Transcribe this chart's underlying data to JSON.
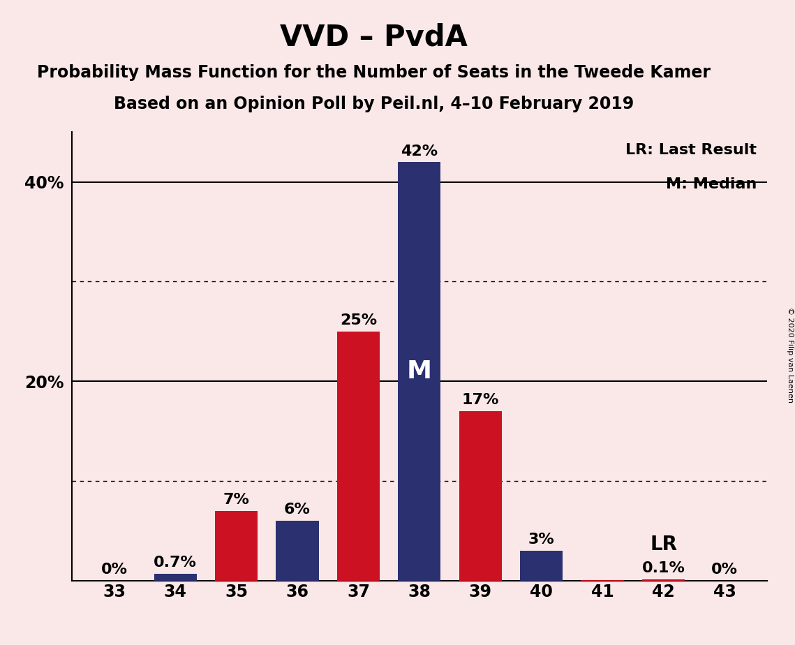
{
  "title": "VVD – PvdA",
  "subtitle1": "Probability Mass Function for the Number of Seats in the Tweede Kamer",
  "subtitle2": "Based on an Opinion Poll by Peil.nl, 4–10 February 2019",
  "copyright": "© 2020 Filip van Laenen",
  "seats": [
    33,
    34,
    35,
    36,
    37,
    38,
    39,
    40,
    41,
    42,
    43
  ],
  "values": [
    0.0,
    0.7,
    7.0,
    6.0,
    25.0,
    42.0,
    17.0,
    3.0,
    0.05,
    0.1,
    0.0
  ],
  "colors": [
    "#CC1122",
    "#2B3070",
    "#CC1122",
    "#2B3070",
    "#CC1122",
    "#2B3070",
    "#CC1122",
    "#2B3070",
    "#CC1122",
    "#CC1122",
    "#CC1122"
  ],
  "labels": [
    "0%",
    "0.7%",
    "7%",
    "6%",
    "25%",
    "42%",
    "17%",
    "3%",
    "",
    "0.1%",
    "0%"
  ],
  "red_color": "#CC1122",
  "navy_color": "#2B3070",
  "background_color": "#FAE8E8",
  "median_seat": 38,
  "lr_seat": 42,
  "ylim": [
    0,
    45
  ],
  "solid_lines": [
    20,
    40
  ],
  "dotted_lines": [
    10,
    30
  ],
  "ytick_positions": [
    20,
    40
  ],
  "ytick_labels": [
    "20%",
    "40%"
  ],
  "legend_lr": "LR: Last Result",
  "legend_m": "M: Median",
  "bar_width": 0.7
}
